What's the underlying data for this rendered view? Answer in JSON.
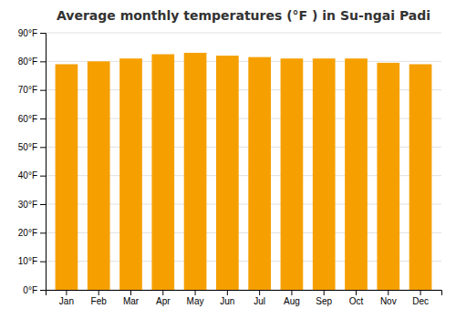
{
  "chart_data": {
    "type": "bar",
    "title": "Average monthly temperatures (°F ) in Su-ngai Padi",
    "categories": [
      "Jan",
      "Feb",
      "Mar",
      "Apr",
      "May",
      "Jun",
      "Jul",
      "Aug",
      "Sep",
      "Oct",
      "Nov",
      "Dec"
    ],
    "values": [
      79.0,
      80.0,
      81.0,
      82.5,
      83.0,
      82.0,
      81.5,
      81.0,
      81.0,
      81.0,
      79.5,
      79.0
    ],
    "color": "#F5A000",
    "ylim": [
      0,
      90
    ],
    "yticks": [
      {
        "value": 0,
        "label": "0°F"
      },
      {
        "value": 10,
        "label": "10°F"
      },
      {
        "value": 20,
        "label": "20°F"
      },
      {
        "value": 30,
        "label": "30°F"
      },
      {
        "value": 40,
        "label": "40°F"
      },
      {
        "value": 50,
        "label": "50°F"
      },
      {
        "value": 60,
        "label": "60°F"
      },
      {
        "value": 70,
        "label": "70°F"
      },
      {
        "value": 80,
        "label": "80°F"
      },
      {
        "value": 90,
        "label": "90°F"
      }
    ],
    "grid": true
  }
}
